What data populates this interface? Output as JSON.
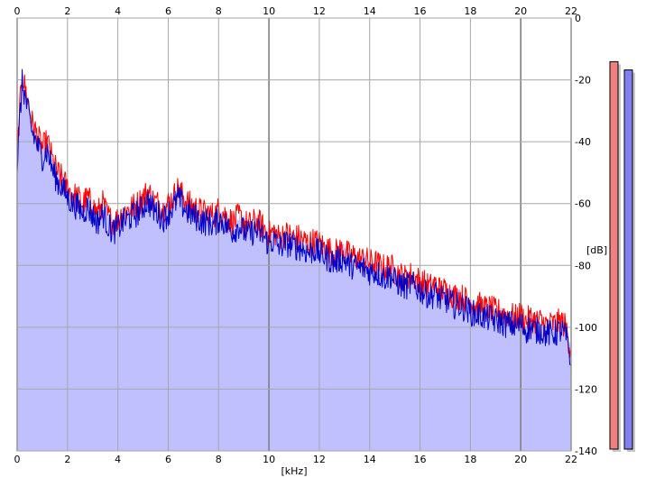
{
  "colors": {
    "background": "#ffffff",
    "grid": "#a6a6a6",
    "grid_major": "#808080",
    "fill": "#c0c0ff",
    "left_channel": "#ff0000",
    "right_channel": "#0000c8",
    "meter_left": "#f08080",
    "meter_right": "#8080f0"
  },
  "chart_data": {
    "type": "line",
    "xlabel": "[kHz]",
    "ylabel": "[dB]",
    "xlim": [
      0,
      22
    ],
    "ylim": [
      -140,
      0
    ],
    "x_ticks": [
      "0",
      "2",
      "4",
      "6",
      "8",
      "10",
      "12",
      "14",
      "16",
      "18",
      "20",
      "22"
    ],
    "x_ticks_top": [
      "0",
      "2",
      "4",
      "6",
      "8",
      "10",
      "12",
      "14",
      "16",
      "18",
      "20",
      "22"
    ],
    "y_ticks": [
      "0",
      "-20",
      "-40",
      "-60",
      "-80",
      "-100",
      "-120",
      "-140"
    ],
    "grid": true,
    "x": [
      0,
      0.1,
      0.2,
      0.3,
      0.4,
      0.5,
      0.6,
      0.8,
      1.0,
      1.2,
      1.4,
      1.6,
      1.8,
      2.0,
      2.2,
      2.4,
      2.6,
      2.8,
      3.0,
      3.2,
      3.4,
      3.6,
      3.8,
      4.0,
      4.2,
      4.4,
      4.6,
      4.8,
      5.0,
      5.2,
      5.4,
      5.6,
      5.8,
      6.0,
      6.2,
      6.4,
      6.6,
      6.8,
      7.0,
      7.2,
      7.4,
      7.6,
      7.8,
      8.0,
      8.2,
      8.4,
      8.6,
      8.8,
      9.0,
      9.2,
      9.4,
      9.6,
      9.8,
      10.0,
      10.2,
      10.4,
      10.6,
      10.8,
      11.0,
      11.2,
      11.4,
      11.6,
      11.8,
      12.0,
      12.2,
      12.4,
      12.6,
      12.8,
      13.0,
      13.2,
      13.4,
      13.6,
      13.8,
      14.0,
      14.2,
      14.4,
      14.6,
      14.8,
      15.0,
      15.2,
      15.4,
      15.6,
      15.8,
      16.0,
      16.2,
      16.4,
      16.6,
      16.8,
      17.0,
      17.2,
      17.4,
      17.6,
      17.8,
      18.0,
      18.2,
      18.4,
      18.6,
      18.8,
      19.0,
      19.2,
      19.4,
      19.6,
      19.8,
      20.0,
      20.2,
      20.4,
      20.6,
      20.8,
      21.0,
      21.2,
      21.4,
      21.6,
      21.8,
      22.0
    ],
    "series": [
      {
        "values": [
          -45,
          -30,
          -18,
          -22,
          -26,
          -30,
          -34,
          -38,
          -42,
          -40,
          -46,
          -50,
          -52,
          -55,
          -57,
          -58,
          -60,
          -58,
          -61,
          -63,
          -60,
          -64,
          -66,
          -65,
          -63,
          -62,
          -61,
          -60,
          -58,
          -56,
          -59,
          -60,
          -62,
          -60,
          -58,
          -55,
          -58,
          -60,
          -61,
          -62,
          -63,
          -63,
          -64,
          -62,
          -63,
          -65,
          -66,
          -64,
          -66,
          -67,
          -66,
          -66,
          -68,
          -70,
          -69,
          -71,
          -70,
          -70,
          -71,
          -71,
          -72,
          -73,
          -72,
          -73,
          -74,
          -75,
          -76,
          -75,
          -75,
          -77,
          -77,
          -78,
          -78,
          -79,
          -79,
          -80,
          -81,
          -80,
          -82,
          -83,
          -84,
          -83,
          -84,
          -85,
          -86,
          -87,
          -86,
          -88,
          -88,
          -89,
          -90,
          -90,
          -91,
          -92,
          -93,
          -93,
          -94,
          -94,
          -95,
          -95,
          -96,
          -96,
          -97,
          -96,
          -98,
          -97,
          -98,
          -98,
          -99,
          -99,
          -99,
          -98,
          -100,
          -108
        ]
      },
      {
        "values": [
          -48,
          -33,
          -21,
          -25,
          -29,
          -33,
          -37,
          -41,
          -45,
          -43,
          -49,
          -53,
          -55,
          -58,
          -60,
          -61,
          -63,
          -61,
          -64,
          -66,
          -63,
          -67,
          -69,
          -68,
          -66,
          -65,
          -64,
          -63,
          -61,
          -59,
          -62,
          -63,
          -65,
          -63,
          -61,
          -58,
          -61,
          -63,
          -64,
          -65,
          -66,
          -66,
          -67,
          -65,
          -66,
          -68,
          -69,
          -67,
          -69,
          -70,
          -69,
          -69,
          -71,
          -73,
          -72,
          -74,
          -73,
          -73,
          -74,
          -74,
          -75,
          -76,
          -75,
          -76,
          -77,
          -78,
          -79,
          -78,
          -78,
          -80,
          -80,
          -81,
          -81,
          -82,
          -82,
          -83,
          -84,
          -83,
          -85,
          -86,
          -87,
          -86,
          -87,
          -88,
          -89,
          -90,
          -89,
          -91,
          -91,
          -92,
          -93,
          -93,
          -94,
          -95,
          -96,
          -96,
          -97,
          -97,
          -98,
          -98,
          -99,
          -99,
          -100,
          -99,
          -101,
          -100,
          -101,
          -101,
          -102,
          -102,
          -102,
          -101,
          -103,
          -112
        ]
      }
    ]
  },
  "meters": [
    {
      "level": 0.94
    },
    {
      "level": 0.92
    }
  ]
}
